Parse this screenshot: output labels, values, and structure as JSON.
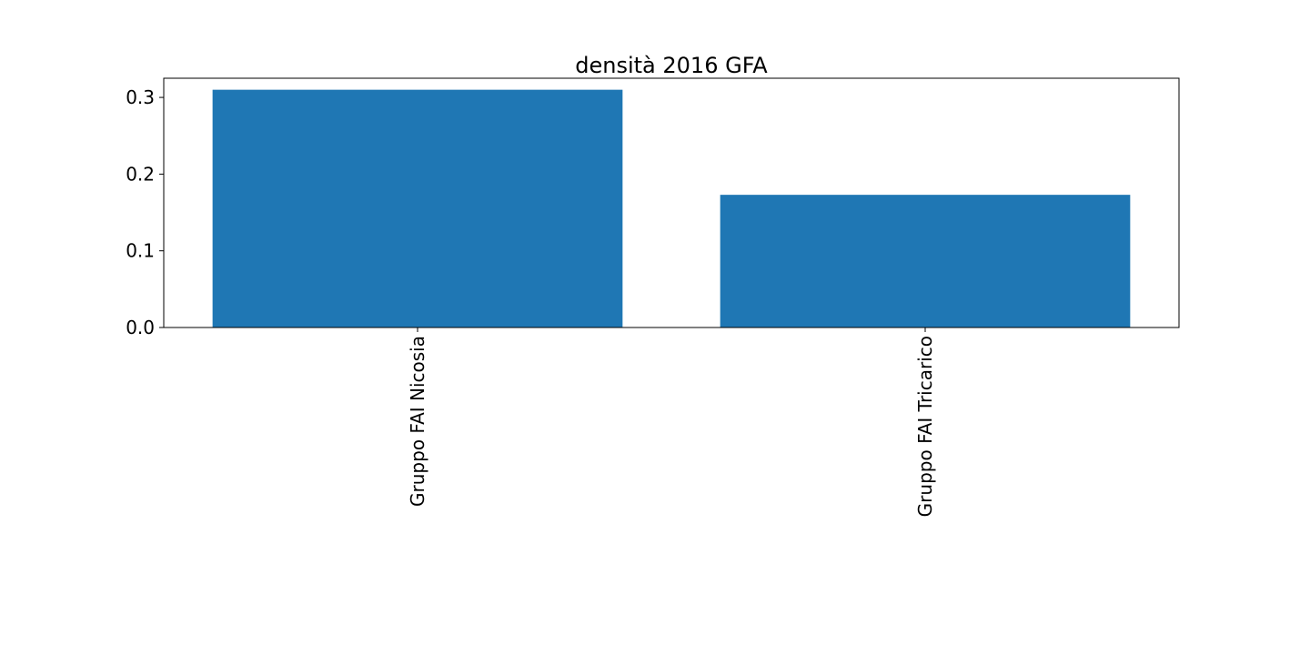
{
  "chart_data": {
    "type": "bar",
    "title": "densità  2016  GFA",
    "xlabel": "",
    "ylabel": "",
    "categories": [
      "Gruppo FAI Nicosia",
      "Gruppo FAI Tricarico"
    ],
    "values": [
      0.31,
      0.173
    ],
    "ylim": [
      0,
      0.325
    ],
    "yticks": [
      0.0,
      0.1,
      0.2,
      0.3
    ],
    "ytick_labels": [
      "0.0",
      "0.1",
      "0.2",
      "0.3"
    ],
    "xtick_rotation": "vertical",
    "bar_color": "#1f77b4",
    "grid": false,
    "legend": "none"
  }
}
